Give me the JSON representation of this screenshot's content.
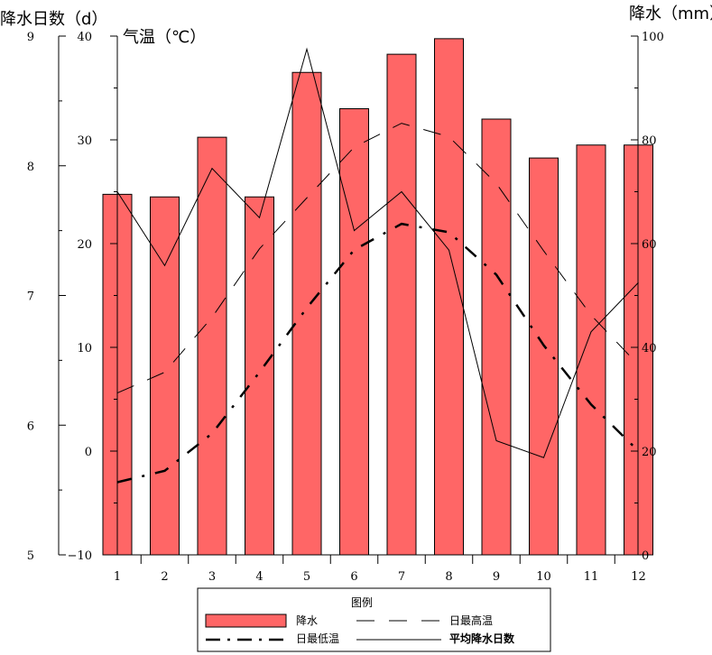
{
  "chart_data": {
    "type": "bar",
    "categories": [
      "1",
      "2",
      "3",
      "4",
      "5",
      "6",
      "7",
      "8",
      "9",
      "10",
      "11",
      "12"
    ],
    "left_axis": {
      "title": "降水日数（d）",
      "ylim": [
        5,
        9
      ],
      "ticks": [
        "5",
        "6",
        "7",
        "8",
        "9"
      ]
    },
    "temp_axis": {
      "title": "气温（℃）",
      "ylim": [
        -10,
        40
      ],
      "ticks": [
        "−10",
        "0",
        "10",
        "20",
        "30",
        "40"
      ]
    },
    "right_axis": {
      "title": "降水（mm）",
      "ylim": [
        0,
        100
      ],
      "ticks": [
        "0",
        "20",
        "40",
        "60",
        "80",
        "100"
      ]
    },
    "series": [
      {
        "name": "降水",
        "type": "bar",
        "axis": "right",
        "color": "#ff6666",
        "values": [
          69.5,
          69,
          80.5,
          69,
          93,
          86,
          96.5,
          99.5,
          84,
          76.5,
          79,
          79
        ]
      },
      {
        "name": "日最高温",
        "type": "line",
        "axis": "temp",
        "style": "long-dash",
        "values": [
          5.6,
          7.6,
          12.9,
          19.5,
          24.4,
          29.3,
          31.6,
          30.3,
          25.8,
          19.3,
          13.1,
          8.3
        ]
      },
      {
        "name": "日最低温",
        "type": "line",
        "axis": "temp",
        "style": "dash-dot-bold",
        "values": [
          -3,
          -1.9,
          1.7,
          7.6,
          13.8,
          19.4,
          21.9,
          21.1,
          17,
          10.2,
          4.5,
          0
        ]
      },
      {
        "name": "平均降水日数",
        "type": "line",
        "axis": "left",
        "style": "solid",
        "values": [
          7.8,
          7.23,
          7.98,
          7.6,
          8.9,
          7.5,
          7.8,
          7.35,
          5.88,
          5.75,
          6.72,
          7.1
        ]
      }
    ],
    "legend": {
      "title": "图例",
      "placement": "bottom-center",
      "items": [
        "降水",
        "日最高温",
        "日最低温",
        "平均降水日数"
      ]
    }
  }
}
